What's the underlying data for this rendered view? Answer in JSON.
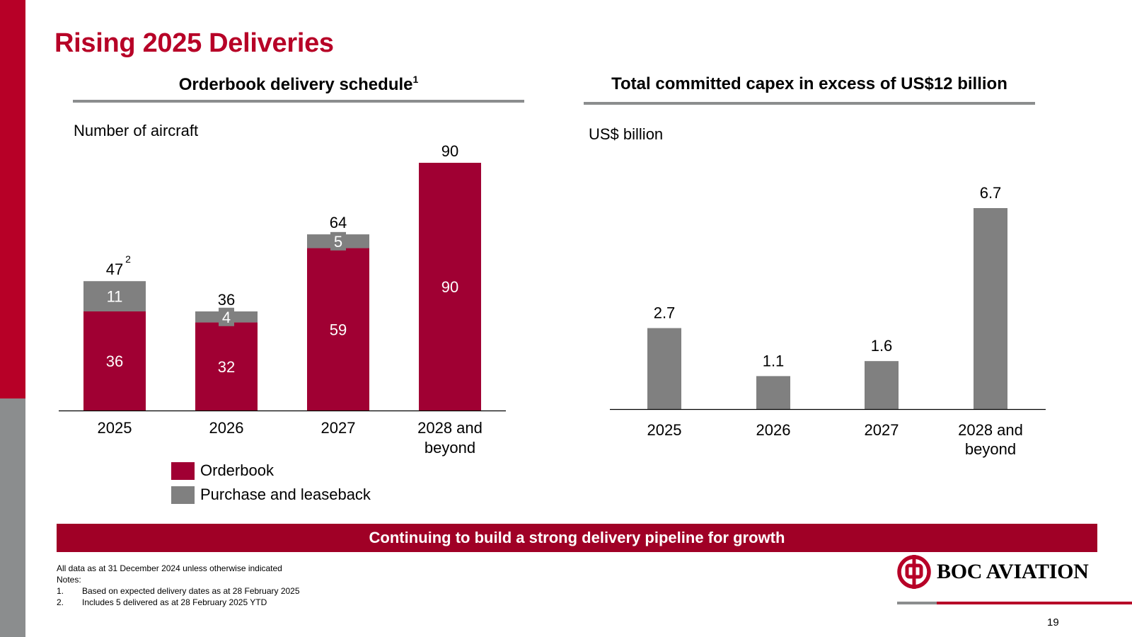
{
  "page": {
    "title": "Rising 2025 Deliveries",
    "page_number": "19"
  },
  "left_panel": {
    "title": "Orderbook delivery schedule",
    "title_footnote": "1",
    "unit_label": "Number of aircraft"
  },
  "right_panel": {
    "title": "Total committed capex in excess of US$12 billion",
    "unit_label": "US$ billion"
  },
  "legend": {
    "items": [
      {
        "label": "Orderbook",
        "color": "#a00033"
      },
      {
        "label": "Purchase and leaseback",
        "color": "#808080"
      }
    ]
  },
  "banner": {
    "text": "Continuing to build a strong delivery pipeline for growth"
  },
  "notes": {
    "intro": "All data as at 31 December 2024 unless otherwise indicated",
    "heading": "Notes:",
    "items": [
      {
        "number": "1.",
        "text": "Based on expected delivery dates as at 28 February 2025"
      },
      {
        "number": "2.",
        "text": "Includes 5 delivered as at 28 February 2025 YTD"
      }
    ]
  },
  "logo": {
    "text": "BOC AVIATION",
    "icon": "boc-logo-icon"
  },
  "colors": {
    "brand_red": "#b70027",
    "orderbook": "#a00033",
    "grey": "#808080"
  },
  "chart_data": [
    {
      "type": "bar",
      "stacked": true,
      "title": "Orderbook delivery schedule",
      "ylabel": "Number of aircraft",
      "categories": [
        [
          "2025"
        ],
        [
          "2026"
        ],
        [
          "2027"
        ],
        [
          "2028 and",
          "beyond"
        ]
      ],
      "series": [
        {
          "name": "Orderbook",
          "values": [
            36,
            32,
            59,
            90
          ]
        },
        {
          "name": "Purchase and leaseback",
          "values": [
            11,
            4,
            5,
            0
          ]
        }
      ],
      "totals": [
        "47",
        "36",
        "64",
        "90"
      ],
      "total_footnotes": [
        "2",
        "",
        "",
        ""
      ],
      "ylim": [
        0,
        90
      ]
    },
    {
      "type": "bar",
      "title": "Total committed capex in excess of US$12 billion",
      "ylabel": "US$ billion",
      "categories": [
        [
          "2025"
        ],
        [
          "2026"
        ],
        [
          "2027"
        ],
        [
          "2028 and",
          "beyond"
        ]
      ],
      "values": [
        2.7,
        1.1,
        1.6,
        6.7
      ],
      "value_labels": [
        "2.7",
        "1.1",
        "1.6",
        "6.7"
      ],
      "ylim": [
        0,
        6.7
      ]
    }
  ]
}
